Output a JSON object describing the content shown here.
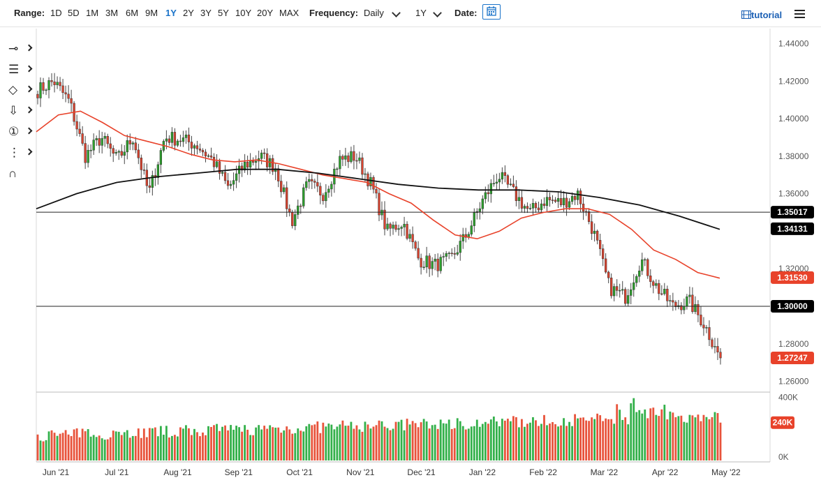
{
  "toolbar": {
    "range_label": "Range:",
    "ranges": [
      "1D",
      "5D",
      "1M",
      "3M",
      "6M",
      "9M",
      "1Y",
      "2Y",
      "3Y",
      "5Y",
      "10Y",
      "20Y",
      "MAX"
    ],
    "active_range": "1Y",
    "frequency_label": "Frequency:",
    "frequency_value": "Daily",
    "period_value": "1Y",
    "date_label": "Date:",
    "tutorial_label": "tutorial"
  },
  "sidebar": {
    "tools": [
      {
        "icon": "line-tool-icon",
        "glyph": "⊸"
      },
      {
        "icon": "fibonacci-icon",
        "glyph": "☰"
      },
      {
        "icon": "shapes-icon",
        "glyph": "◇"
      },
      {
        "icon": "arrow-down-icon",
        "glyph": "⇩"
      },
      {
        "icon": "annotation-number-icon",
        "glyph": "①"
      },
      {
        "icon": "measure-icon",
        "glyph": "⋮"
      },
      {
        "icon": "magnet-icon",
        "glyph": "∩"
      }
    ]
  },
  "chart_data": {
    "type": "candlestick",
    "price_axis": {
      "ticks": [
        "1.44000",
        "1.42000",
        "1.40000",
        "1.38000",
        "1.36000",
        "1.34000",
        "1.32000",
        "1.30000",
        "1.28000",
        "1.26000"
      ],
      "range": [
        1.255,
        1.448
      ]
    },
    "time_axis": {
      "ticks": [
        "Jun '21",
        "Jul '21",
        "Aug '21",
        "Sep '21",
        "Oct '21",
        "Nov '21",
        "Dec '21",
        "Jan '22",
        "Feb '22",
        "Mar '22",
        "Apr '22",
        "May '22"
      ]
    },
    "horizontal_lines": [
      1.35017,
      1.3
    ],
    "price_labels": [
      {
        "text": "1.35017",
        "value": 1.35017,
        "color": "#000000"
      },
      {
        "text": "1.34131",
        "value": 1.34131,
        "color": "#000000"
      },
      {
        "text": "1.31530",
        "value": 1.3153,
        "color": "#e8422a"
      },
      {
        "text": "1.30000",
        "value": 1.3,
        "color": "#000000"
      },
      {
        "text": "1.27247",
        "value": 1.27247,
        "color": "#e8422a"
      }
    ],
    "close_path": [
      [
        "Jun '21",
        1.415
      ],
      [
        "Jun '21",
        1.42
      ],
      [
        "Jun '21",
        1.409
      ],
      [
        "Jul '21",
        1.38
      ],
      [
        "Jul '21",
        1.39
      ],
      [
        "Jul '21",
        1.378
      ],
      [
        "Jul '21",
        1.39
      ],
      [
        "Aug '21",
        1.36
      ],
      [
        "Aug '21",
        1.39
      ],
      [
        "Aug '21",
        1.389
      ],
      [
        "Aug '21",
        1.386
      ],
      [
        "Sep '21",
        1.378
      ],
      [
        "Sep '21",
        1.363
      ],
      [
        "Sep '21",
        1.375
      ],
      [
        "Sep '21",
        1.38
      ],
      [
        "Sep '21",
        1.374
      ],
      [
        "Oct '21",
        1.345
      ],
      [
        "Oct '21",
        1.365
      ],
      [
        "Oct '21",
        1.36
      ],
      [
        "Oct '21",
        1.378
      ],
      [
        "Nov '21",
        1.38
      ],
      [
        "Nov '21",
        1.365
      ],
      [
        "Nov '21",
        1.34
      ],
      [
        "Nov '21",
        1.345
      ],
      [
        "Dec '21",
        1.325
      ],
      [
        "Dec '21",
        1.322
      ],
      [
        "Dec '21",
        1.325
      ],
      [
        "Dec '21",
        1.338
      ],
      [
        "Jan '22",
        1.356
      ],
      [
        "Jan '22",
        1.37
      ],
      [
        "Jan '22",
        1.36
      ],
      [
        "Feb '22",
        1.35
      ],
      [
        "Feb '22",
        1.357
      ],
      [
        "Feb '22",
        1.355
      ],
      [
        "Feb '22",
        1.36
      ],
      [
        "Mar '22",
        1.34
      ],
      [
        "Mar '22",
        1.31
      ],
      [
        "Mar '22",
        1.305
      ],
      [
        "Mar '22",
        1.325
      ],
      [
        "Apr '22",
        1.31
      ],
      [
        "Apr '22",
        1.3
      ],
      [
        "Apr '22",
        1.303
      ],
      [
        "Apr '22",
        1.29
      ],
      [
        "Apr '22",
        1.27247
      ]
    ],
    "sma50": [
      1.393,
      1.402,
      1.404,
      1.398,
      1.391,
      1.388,
      1.385,
      1.381,
      1.378,
      1.377,
      1.378,
      1.376,
      1.373,
      1.37,
      1.368,
      1.366,
      1.36,
      1.355,
      1.346,
      1.338,
      1.336,
      1.34,
      1.347,
      1.35,
      1.352,
      1.352,
      1.349,
      1.341,
      1.33,
      1.325,
      1.318,
      1.315
    ],
    "sma200": [
      1.352,
      1.36,
      1.366,
      1.369,
      1.371,
      1.373,
      1.373,
      1.371,
      1.368,
      1.365,
      1.363,
      1.362,
      1.362,
      1.361,
      1.358,
      1.354,
      1.348,
      1.341
    ],
    "volume_axis": {
      "ticks": [
        "400K",
        "240K",
        "0K"
      ]
    },
    "volume_label": {
      "text": "240K",
      "value": 240000,
      "color": "#e8422a"
    },
    "colors": {
      "up": "#2ca02c",
      "down": "#d9432f",
      "sma50": "#e8422a",
      "sma200": "#111111",
      "label_bg": "#000000",
      "accent": "#1a73c9"
    }
  }
}
